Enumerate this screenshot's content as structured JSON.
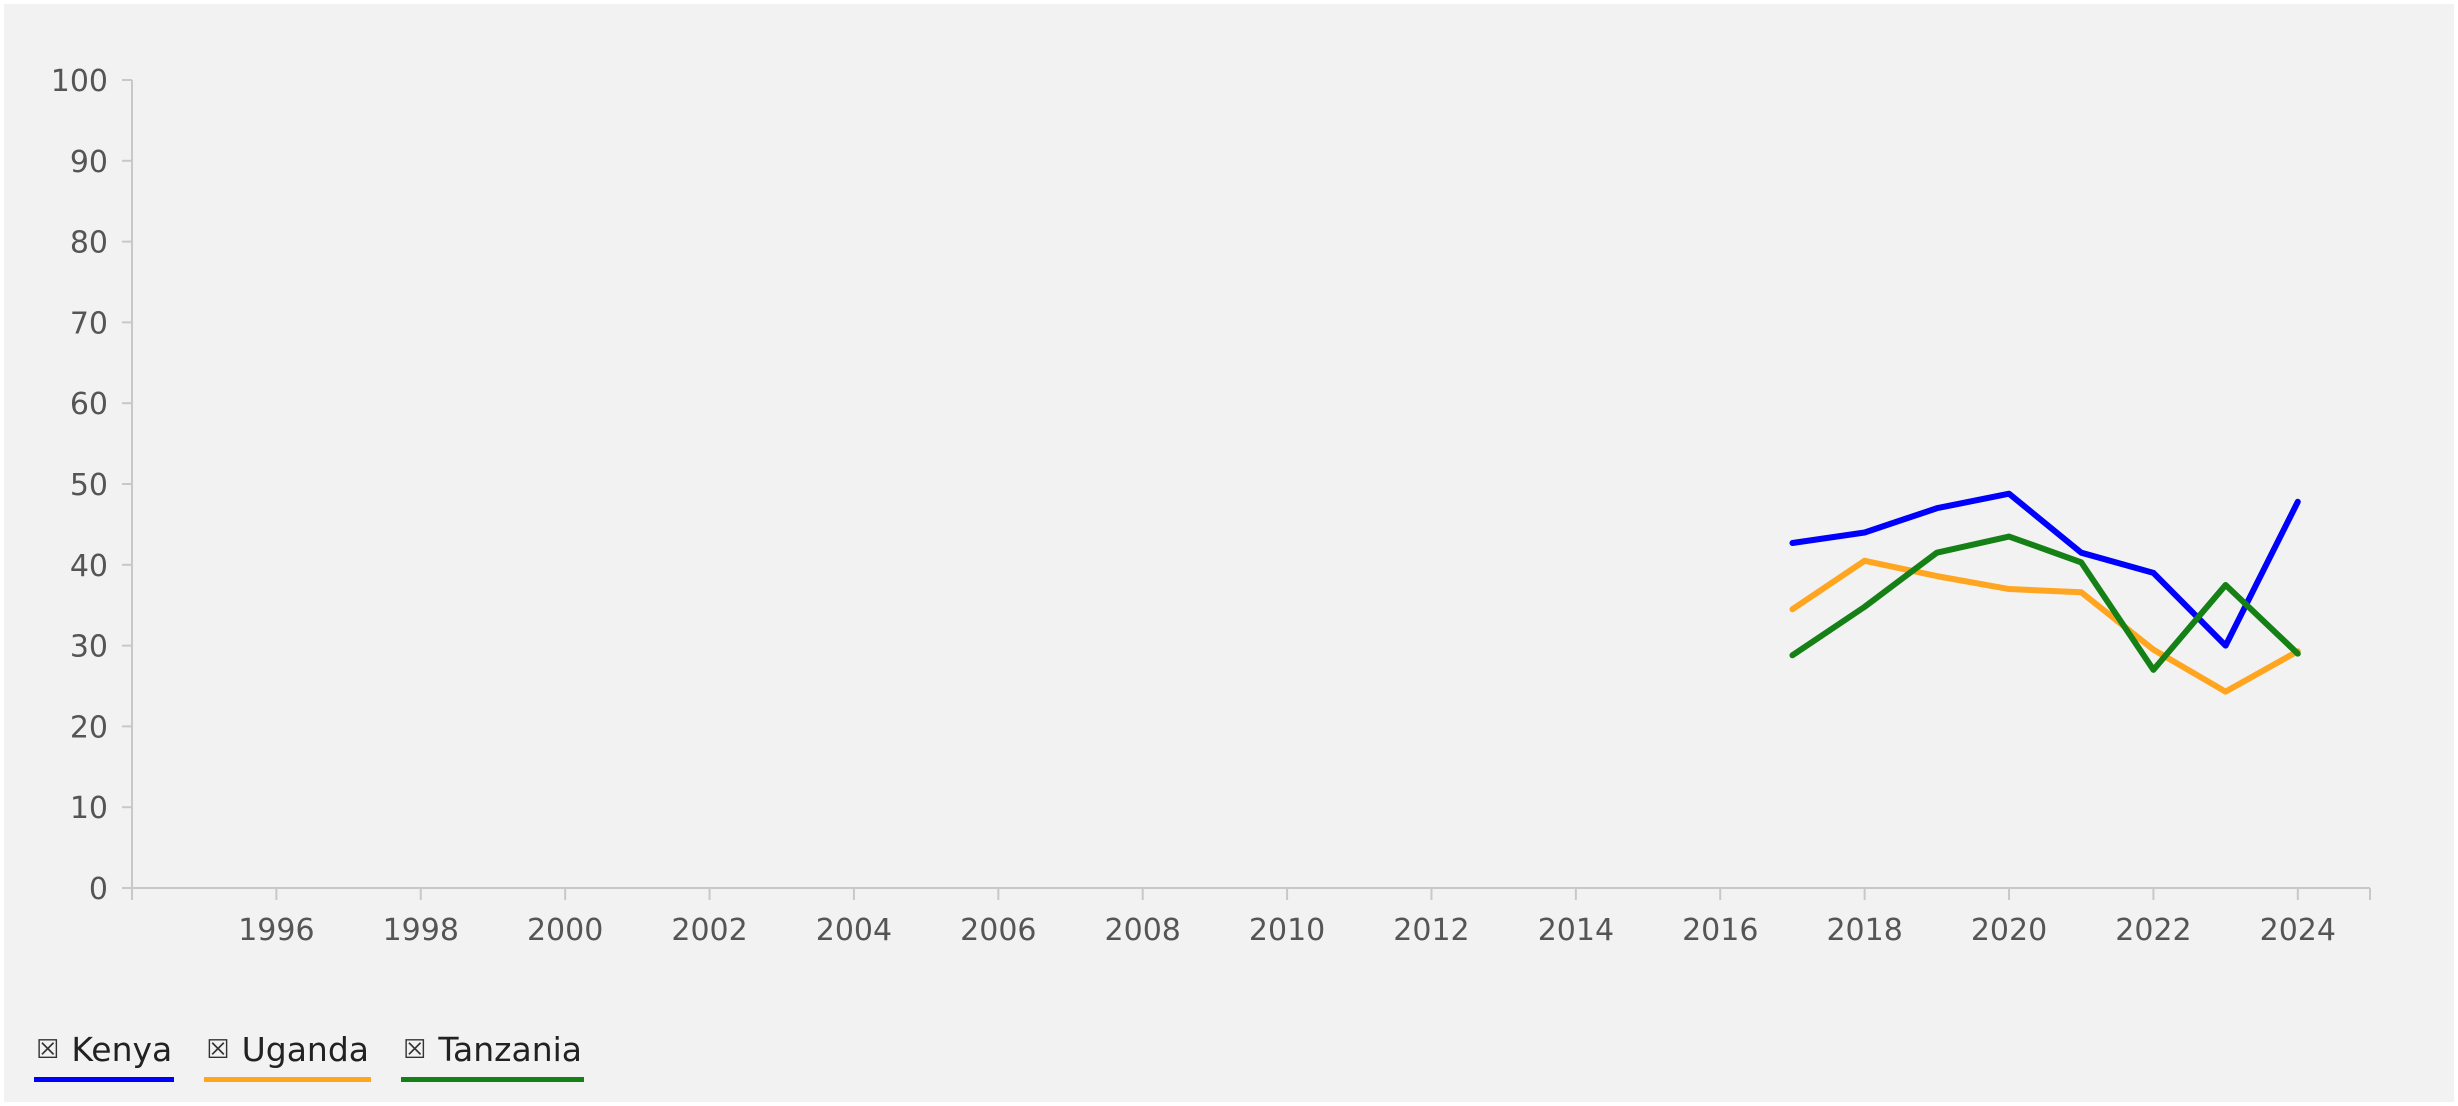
{
  "chart_data": {
    "type": "line",
    "x": [
      2017,
      2018,
      2019,
      2020,
      2021,
      2022,
      2023,
      2024
    ],
    "series": [
      {
        "name": "Kenya",
        "color": "#0000ff",
        "values": [
          42.7,
          44.0,
          47.0,
          48.8,
          41.5,
          39.0,
          30.0,
          47.8
        ]
      },
      {
        "name": "Uganda",
        "color": "#ffa520",
        "values": [
          34.5,
          40.5,
          38.6,
          37.0,
          36.6,
          29.5,
          24.3,
          29.3
        ]
      },
      {
        "name": "Tanzania",
        "color": "#158015",
        "values": [
          28.8,
          34.8,
          41.5,
          43.5,
          40.3,
          27.0,
          37.5,
          29.0
        ]
      }
    ],
    "xlim": [
      1994,
      2025
    ],
    "ylim": [
      0,
      100
    ],
    "x_ticks": [
      "1996",
      "1998",
      "2000",
      "2002",
      "2004",
      "2006",
      "2008",
      "2010",
      "2012",
      "2014",
      "2016",
      "2018",
      "2020",
      "2022",
      "2024"
    ],
    "y_ticks": [
      "0",
      "10",
      "20",
      "30",
      "40",
      "50",
      "60",
      "70",
      "80",
      "90",
      "100"
    ],
    "title": "",
    "xlabel": "",
    "ylabel": "",
    "grid": false,
    "legend_position": "bottom-left"
  },
  "legend": {
    "icon": "☒",
    "items": [
      {
        "label": "Kenya",
        "color": "#0000ff"
      },
      {
        "label": "Uganda",
        "color": "#ffa520"
      },
      {
        "label": "Tanzania",
        "color": "#158015"
      }
    ]
  }
}
